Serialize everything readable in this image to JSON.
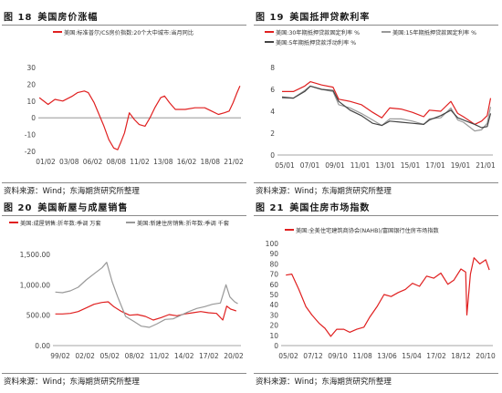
{
  "source_text": "资料来源：Wind；东海期货研究所整理",
  "chart_data": [
    {
      "type": "line",
      "title_num": "图 18",
      "title": "美国房价涨幅",
      "xlabel": "",
      "ylabel": "",
      "ylim": [
        -20,
        30
      ],
      "yticks": [
        "-20",
        "-10",
        "0",
        "10",
        "20",
        "30"
      ],
      "xticks": [
        "01/02",
        "03/08",
        "06/02",
        "08/08",
        "11/02",
        "13/08",
        "16/02",
        "18/08",
        "21/02"
      ],
      "grid": false,
      "legend": "top",
      "series": [
        {
          "name": "美国:标准普尔/CS房价指数:20个大中城市:当月同比",
          "color": "#e02020",
          "x": [
            2001.1,
            2002.0,
            2002.7,
            2003.5,
            2004.5,
            2005.0,
            2005.7,
            2006.1,
            2006.7,
            2007.2,
            2007.7,
            2008.2,
            2008.7,
            2009.1,
            2009.4,
            2009.8,
            2010.3,
            2010.8,
            2011.3,
            2011.9,
            2012.4,
            2012.9,
            2013.5,
            2013.9,
            2014.4,
            2015.0,
            2016.0,
            2017.0,
            2018.0,
            2018.7,
            2019.4,
            2020.0,
            2020.5,
            2020.9,
            2021.3,
            2021.6
          ],
          "y": [
            12,
            8,
            11,
            10,
            13,
            15,
            16,
            15,
            9,
            2,
            -5,
            -13,
            -18,
            -19,
            -15,
            -9,
            3,
            -1,
            -4,
            -5,
            0,
            6,
            12,
            13,
            9,
            5,
            5,
            6,
            6,
            4,
            2,
            3,
            4,
            9,
            15,
            19
          ]
        }
      ]
    },
    {
      "type": "line",
      "title_num": "图 19",
      "title": "美国抵押贷款利率",
      "xlabel": "",
      "ylabel": "",
      "ylim": [
        0,
        8
      ],
      "yticks": [
        "0",
        "2",
        "4",
        "6",
        "8"
      ],
      "xticks": [
        "05/01",
        "07/01",
        "09/01",
        "11/01",
        "13/01",
        "15/01",
        "17/01",
        "19/01",
        "21/01"
      ],
      "grid": false,
      "legend": "top",
      "series": [
        {
          "name": "美国:30年期抵押贷款固定利率 %",
          "color": "#e02020",
          "x": [
            2004.0,
            2005.0,
            2006.0,
            2006.5,
            2007.5,
            2008.5,
            2009.0,
            2010.0,
            2011.0,
            2012.0,
            2012.8,
            2013.5,
            2014.5,
            2015.5,
            2016.5,
            2017.0,
            2018.0,
            2018.9,
            2019.5,
            2020.0,
            2021.0,
            2021.6,
            2022.1,
            2022.4
          ],
          "y": [
            5.8,
            5.8,
            6.3,
            6.7,
            6.4,
            6.2,
            5.1,
            4.9,
            4.6,
            3.9,
            3.4,
            4.3,
            4.2,
            3.9,
            3.5,
            4.1,
            4.0,
            4.9,
            3.8,
            3.5,
            2.8,
            3.1,
            3.6,
            5.2
          ]
        },
        {
          "name": "美国:15年期抵押贷款固定利率 %",
          "color": "#999999",
          "x": [
            2004.0,
            2005.0,
            2006.0,
            2006.5,
            2007.5,
            2008.5,
            2009.0,
            2010.0,
            2011.0,
            2012.0,
            2012.8,
            2013.5,
            2014.5,
            2015.5,
            2016.5,
            2017.0,
            2018.0,
            2018.9,
            2019.5,
            2020.0,
            2021.0,
            2021.6,
            2022.1,
            2022.4
          ],
          "y": [
            5.2,
            5.2,
            5.9,
            6.3,
            6.0,
            5.8,
            4.6,
            4.3,
            3.8,
            3.2,
            2.7,
            3.3,
            3.3,
            3.1,
            2.8,
            3.3,
            3.4,
            4.3,
            3.2,
            3.0,
            2.2,
            2.3,
            2.9,
            4.4
          ]
        },
        {
          "name": "美国:5年期抵押贷款浮动利率 %",
          "color": "#444444",
          "x": [
            2004.0,
            2005.0,
            2006.0,
            2006.5,
            2007.5,
            2008.5,
            2009.0,
            2010.0,
            2011.0,
            2012.0,
            2012.8,
            2013.5,
            2014.5,
            2015.5,
            2016.5,
            2017.0,
            2018.0,
            2018.9,
            2019.5,
            2020.0,
            2021.0,
            2021.6,
            2022.1,
            2022.4
          ],
          "y": [
            5.3,
            5.2,
            5.8,
            6.3,
            6.0,
            5.9,
            4.9,
            4.1,
            3.6,
            2.9,
            2.7,
            3.1,
            3.0,
            2.9,
            2.8,
            3.2,
            3.6,
            4.1,
            3.4,
            3.2,
            2.8,
            2.5,
            2.6,
            3.8
          ]
        }
      ]
    },
    {
      "type": "line",
      "title_num": "图 20",
      "title": "美国新屋与成屋销售",
      "xlabel": "",
      "ylabel": "",
      "ylim": [
        0,
        1500
      ],
      "yticks": [
        "0.00",
        "500.00",
        "1,000.00",
        "1,500.00"
      ],
      "xticks": [
        "99/02",
        "02/02",
        "05/02",
        "08/02",
        "11/02",
        "14/02",
        "17/02",
        "20/02"
      ],
      "grid": false,
      "legend": "top",
      "series": [
        {
          "name": "美国:成屋销售:折年数:季调 万套",
          "color": "#e02020",
          "x": [
            1999.1,
            2000.0,
            2001.0,
            2002.0,
            2003.0,
            2004.0,
            2005.0,
            2005.8,
            2006.5,
            2007.5,
            2008.5,
            2009.5,
            2010.5,
            2011.5,
            2012.5,
            2013.5,
            2014.5,
            2015.5,
            2016.5,
            2017.5,
            2018.5,
            2019.5,
            2020.3,
            2020.8,
            2021.3,
            2022.0
          ],
          "y": [
            520,
            520,
            530,
            560,
            620,
            680,
            710,
            720,
            640,
            560,
            500,
            510,
            480,
            420,
            460,
            510,
            490,
            520,
            540,
            560,
            540,
            530,
            420,
            650,
            600,
            570
          ]
        },
        {
          "name": "美国:新建住房销售:折年数:季调 千套",
          "color": "#999999",
          "x": [
            1999.1,
            2000.0,
            2001.0,
            2002.0,
            2003.0,
            2004.0,
            2005.0,
            2005.6,
            2006.3,
            2007.0,
            2008.0,
            2009.0,
            2010.0,
            2011.0,
            2012.0,
            2013.0,
            2014.0,
            2015.0,
            2016.0,
            2017.0,
            2018.0,
            2019.0,
            2020.0,
            2020.7,
            2021.2,
            2021.8,
            2022.2
          ],
          "y": [
            880,
            870,
            900,
            960,
            1080,
            1180,
            1280,
            1370,
            1050,
            800,
            480,
            400,
            320,
            300,
            360,
            430,
            440,
            500,
            560,
            610,
            640,
            680,
            700,
            1000,
            800,
            720,
            690
          ]
        }
      ]
    },
    {
      "type": "line",
      "title_num": "图 21",
      "title": "美国住房市场指数",
      "xlabel": "",
      "ylabel": "",
      "ylim": [
        0,
        100
      ],
      "yticks": [
        "0",
        "10",
        "20",
        "30",
        "40",
        "50",
        "60",
        "70",
        "80",
        "90",
        "100"
      ],
      "xticks": [
        "05/02",
        "07/12",
        "09/10",
        "11/08",
        "13/06",
        "15/04",
        "17/02",
        "18/12",
        "20/10"
      ],
      "grid": false,
      "legend": "top",
      "series": [
        {
          "name": "美国:全美住宅建筑商协会(NAHB)/富国银行住房市场指数",
          "color": "#e02020",
          "x": [
            2005.1,
            2005.6,
            2006.2,
            2006.8,
            2007.3,
            2007.9,
            2008.4,
            2008.9,
            2009.4,
            2010.0,
            2010.5,
            2011.1,
            2011.7,
            2012.2,
            2012.8,
            2013.4,
            2014.0,
            2014.6,
            2015.2,
            2015.8,
            2016.4,
            2017.0,
            2017.6,
            2018.2,
            2018.8,
            2019.3,
            2019.9,
            2020.3,
            2020.4,
            2020.7,
            2021.0,
            2021.5,
            2022.0,
            2022.3
          ],
          "y": [
            69,
            70,
            55,
            38,
            30,
            22,
            17,
            9,
            16,
            16,
            13,
            16,
            18,
            28,
            38,
            50,
            48,
            52,
            55,
            61,
            58,
            68,
            66,
            71,
            60,
            64,
            75,
            72,
            30,
            70,
            86,
            80,
            84,
            74
          ]
        }
      ]
    }
  ]
}
